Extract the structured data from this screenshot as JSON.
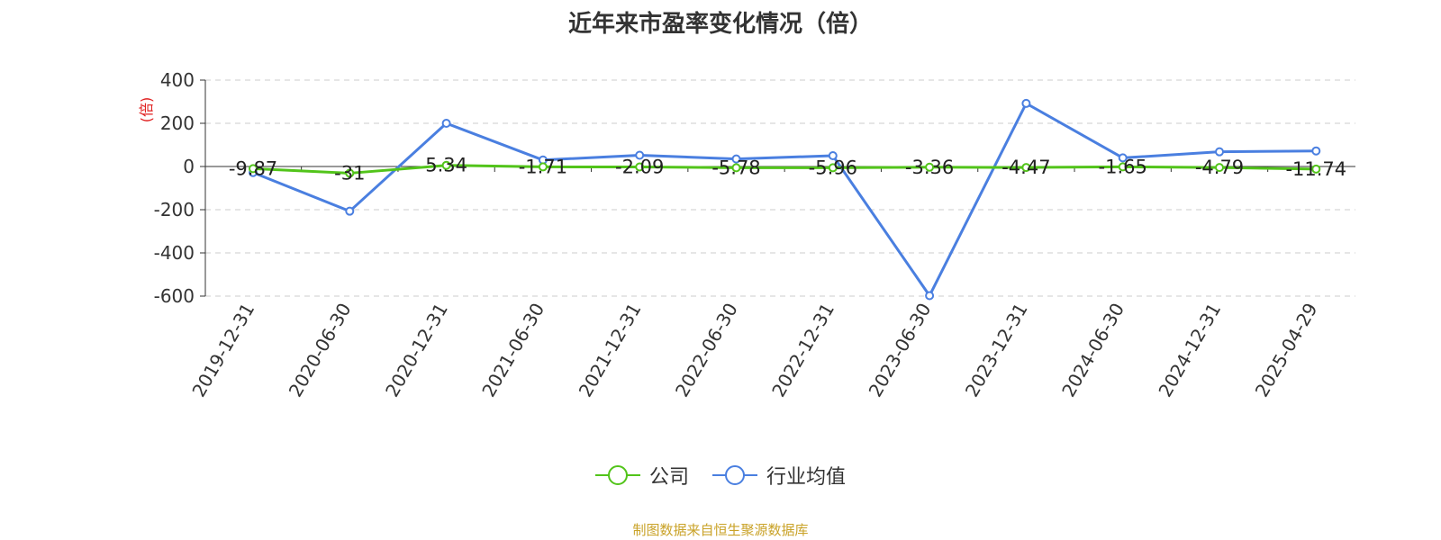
{
  "chart_data": {
    "type": "line",
    "title": "近年来市盈率变化情况（倍）",
    "ylabel": "(倍)",
    "categories": [
      "2019-12-31",
      "2020-06-30",
      "2020-12-31",
      "2021-06-30",
      "2021-12-31",
      "2022-06-30",
      "2022-12-31",
      "2023-06-30",
      "2023-12-31",
      "2024-06-30",
      "2024-12-31",
      "2025-04-29"
    ],
    "ylim": [
      -600,
      400
    ],
    "yticks": [
      "400",
      "200",
      "0",
      "-200",
      "-400",
      "-600"
    ],
    "grid": true,
    "legend_position": "bottom-center",
    "series": [
      {
        "name": "公司",
        "color": "#52c41a",
        "values": [
          -9.87,
          -31,
          5.34,
          -1.71,
          -2.09,
          -5.78,
          -5.96,
          -3.36,
          -4.47,
          -1.65,
          -4.79,
          -11.74
        ],
        "labels": [
          "-9.87",
          "-31",
          "5.34",
          "-1.71",
          "-2.09",
          "-5.78",
          "-5.96",
          "-3.36",
          "-4.47",
          "-1.65",
          "-4.79",
          "-11.74"
        ]
      },
      {
        "name": "行业均值",
        "color": "#4a7fe0",
        "values": [
          -28,
          -207,
          200,
          30,
          52,
          35,
          50,
          -598,
          292,
          40,
          68,
          72
        ]
      }
    ]
  },
  "source_note": "制图数据来自恒生聚源数据库"
}
